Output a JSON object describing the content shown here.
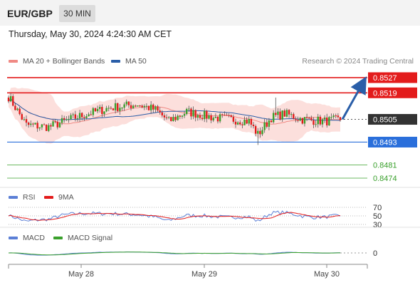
{
  "header": {
    "pair": "EUR/GBP",
    "timeframe": "30 MIN"
  },
  "datetime": "Thursday, May 30, 2024 4:24:30 AM CET",
  "legend": {
    "ma20_bb": {
      "label": "MA 20 + Bollinger Bands",
      "color": "#f08a85"
    },
    "ma50": {
      "label": "MA 50",
      "color": "#2a5ea8"
    },
    "rsi": {
      "label": "RSI",
      "color": "#5b7fd6"
    },
    "rsi_ma": {
      "label": "9MA",
      "color": "#e31b1b"
    },
    "macd": {
      "label": "MACD",
      "color": "#5b7fd6"
    },
    "macd_signal": {
      "label": "MACD Signal",
      "color": "#3aa02c"
    }
  },
  "credit": "Research © 2024 Trading Central",
  "chart_data": {
    "type": "candlestick",
    "x_ticks": [
      "May 28",
      "May 29",
      "May 30"
    ],
    "y_range": [
      0.84695,
      0.85315
    ],
    "current_price": 0.8505,
    "levels": [
      {
        "label": "0.8527",
        "value": 0.8527,
        "type": "resistance",
        "color": "#e31b1b",
        "box": true
      },
      {
        "label": "0.8519",
        "value": 0.8519,
        "type": "resistance",
        "color": "#e31b1b",
        "box": true
      },
      {
        "label": "0.8505",
        "value": 0.8505,
        "type": "current",
        "color": "#333333",
        "box": true
      },
      {
        "label": "0.8493",
        "value": 0.8493,
        "type": "support",
        "color": "#2a6fdb",
        "box": true
      },
      {
        "label": "0.8481",
        "value": 0.8481,
        "type": "target",
        "color": "#3aa02c",
        "box": false
      },
      {
        "label": "0.8474",
        "value": 0.8474,
        "type": "target",
        "color": "#3aa02c",
        "box": false
      }
    ],
    "forecast_arrow": {
      "from": 0.8505,
      "to": 0.8526
    },
    "rsi": {
      "levels": [
        "70",
        "50",
        "30"
      ]
    },
    "macd": {
      "levels": [
        "0"
      ]
    }
  }
}
